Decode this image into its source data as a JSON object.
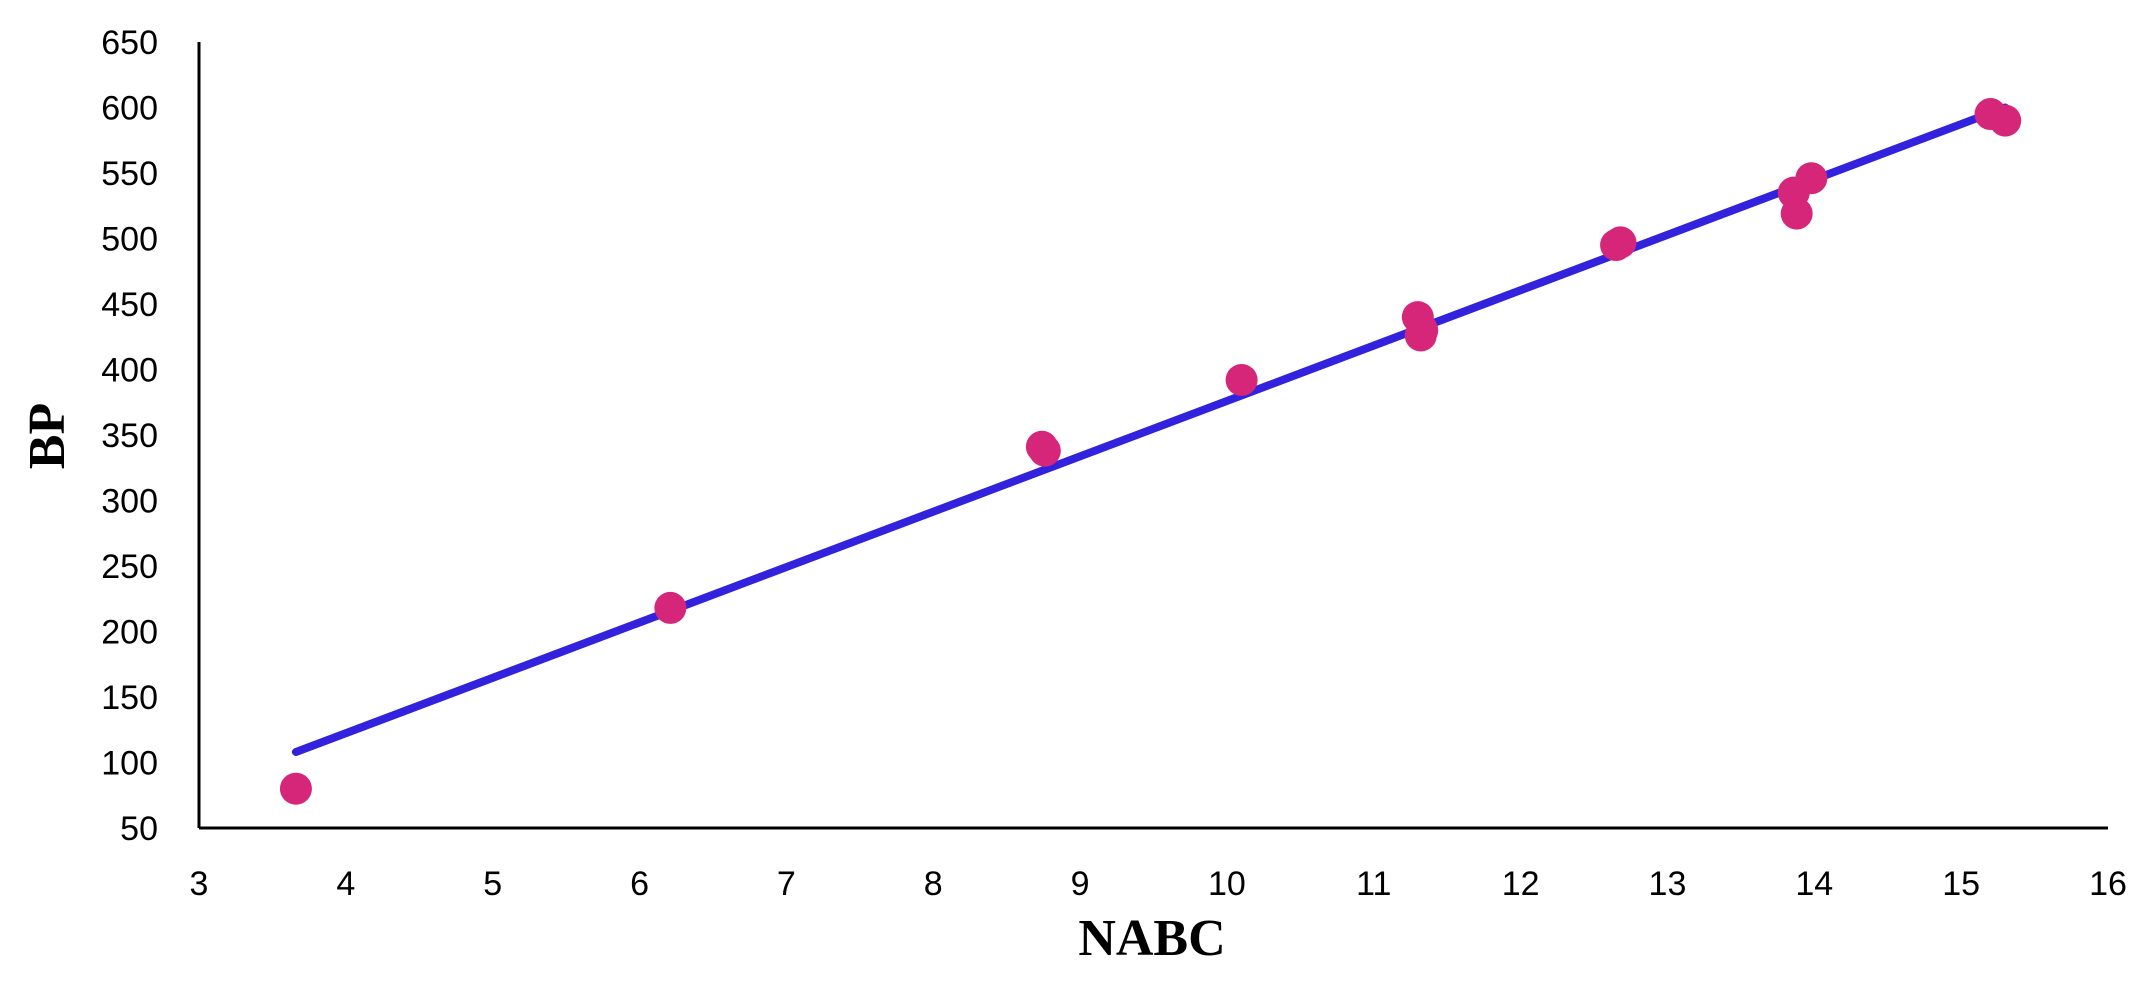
{
  "chart_data": {
    "type": "scatter",
    "title": "",
    "xlabel": "NABC",
    "ylabel": "BP",
    "xlim": [
      3,
      16
    ],
    "ylim": [
      50,
      650
    ],
    "x_ticks": [
      3,
      4,
      5,
      6,
      7,
      8,
      9,
      10,
      11,
      12,
      13,
      14,
      15,
      16
    ],
    "y_ticks": [
      50,
      100,
      150,
      200,
      250,
      300,
      350,
      400,
      450,
      500,
      550,
      600,
      650
    ],
    "grid": false,
    "legend": "none",
    "colors": {
      "points": "#d6267a",
      "trendline": "#3322dd",
      "axis": "#000000"
    },
    "series": [
      {
        "values": [
          {
            "x": 3.66,
            "y": 80
          },
          {
            "x": 6.21,
            "y": 218
          },
          {
            "x": 8.74,
            "y": 341
          },
          {
            "x": 8.76,
            "y": 338
          },
          {
            "x": 10.1,
            "y": 392
          },
          {
            "x": 11.3,
            "y": 440
          },
          {
            "x": 11.32,
            "y": 426
          },
          {
            "x": 11.33,
            "y": 430
          },
          {
            "x": 12.65,
            "y": 495
          },
          {
            "x": 12.68,
            "y": 497
          },
          {
            "x": 13.86,
            "y": 535
          },
          {
            "x": 13.88,
            "y": 519
          },
          {
            "x": 13.98,
            "y": 546
          },
          {
            "x": 15.2,
            "y": 595
          },
          {
            "x": 15.3,
            "y": 590
          }
        ]
      }
    ],
    "trendline": {
      "x": [
        3.66,
        15.3
      ],
      "y": [
        108,
        600
      ]
    }
  }
}
